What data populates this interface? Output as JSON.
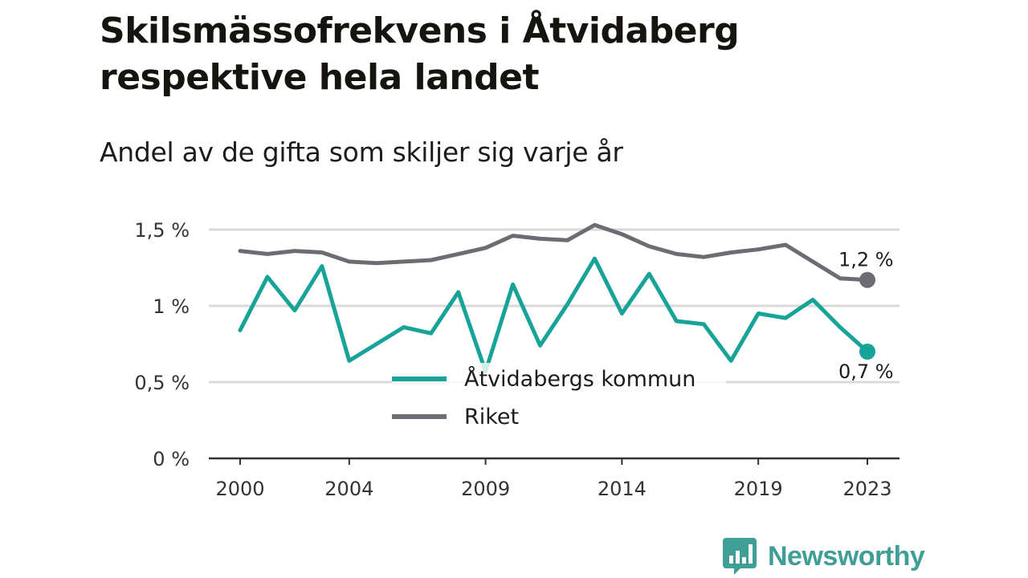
{
  "colors": {
    "kommun": "#17a398",
    "riket": "#6d6b73",
    "grid": "#d9d9d9",
    "axis": "#333333",
    "brand": "#3f9e95"
  },
  "brand": {
    "name": "Newsworthy",
    "icon": "newsworthy-logo-icon"
  },
  "chart_data": {
    "type": "line",
    "title": "Skilsmässofrekvens i Åtvidaberg respektive hela landet",
    "subtitle": "Andel av de gifta som skiljer sig varje år",
    "x": [
      2000,
      2001,
      2002,
      2003,
      2004,
      2005,
      2006,
      2007,
      2008,
      2009,
      2010,
      2011,
      2012,
      2013,
      2014,
      2015,
      2016,
      2017,
      2018,
      2019,
      2020,
      2021,
      2022,
      2023
    ],
    "x_ticks": [
      {
        "value": 2000,
        "label": "2000"
      },
      {
        "value": 2004,
        "label": "2004"
      },
      {
        "value": 2009,
        "label": "2009"
      },
      {
        "value": 2014,
        "label": "2014"
      },
      {
        "value": 2019,
        "label": "2019"
      },
      {
        "value": 2023,
        "label": "2023"
      }
    ],
    "y_ticks": [
      {
        "value": 0,
        "label": "0 %"
      },
      {
        "value": 0.5,
        "label": "0,5 %"
      },
      {
        "value": 1,
        "label": "1 %"
      },
      {
        "value": 1.5,
        "label": "1,5 %"
      }
    ],
    "ylim": [
      0,
      1.5
    ],
    "xlim": [
      1999,
      2024
    ],
    "series": [
      {
        "name": "Åtvidabergs kommun",
        "key": "kommun",
        "values": [
          0.84,
          1.19,
          0.97,
          1.26,
          0.64,
          0.75,
          0.86,
          0.82,
          1.09,
          0.57,
          1.14,
          0.74,
          1.01,
          1.31,
          0.95,
          1.21,
          0.9,
          0.88,
          0.64,
          0.95,
          0.92,
          1.04,
          0.86,
          0.7
        ],
        "end_label": "0,7 %"
      },
      {
        "name": "Riket",
        "key": "riket",
        "values": [
          1.36,
          1.34,
          1.36,
          1.35,
          1.29,
          1.28,
          1.29,
          1.3,
          1.34,
          1.38,
          1.46,
          1.44,
          1.43,
          1.53,
          1.47,
          1.39,
          1.34,
          1.32,
          1.35,
          1.37,
          1.4,
          1.29,
          1.18,
          1.17
        ],
        "end_label": "1,2 %"
      }
    ],
    "legend": {
      "position": "bottom-center",
      "items": [
        "Åtvidabergs kommun",
        "Riket"
      ]
    },
    "grid": true
  }
}
